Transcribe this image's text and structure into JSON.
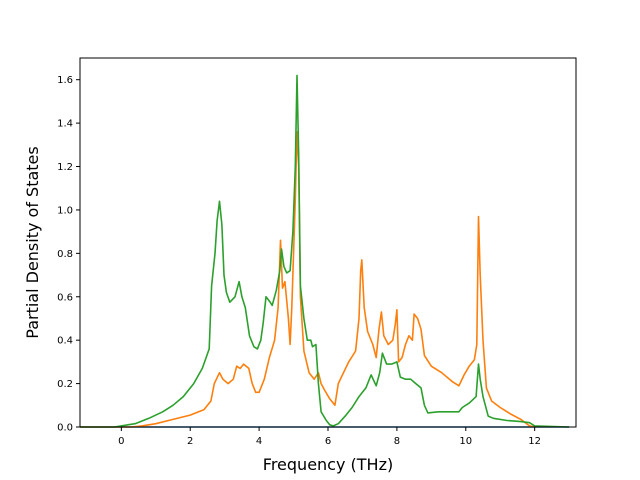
{
  "chart_data": {
    "type": "line",
    "title": "",
    "xlabel": "Frequency (THz)",
    "ylabel": "Partial Density of States",
    "xlim": [
      -1.2,
      13.2
    ],
    "ylim": [
      0,
      1.7
    ],
    "xticks": [
      0,
      2,
      4,
      6,
      8,
      10,
      12
    ],
    "yticks": [
      0.0,
      0.2,
      0.4,
      0.6,
      0.8,
      1.0,
      1.2,
      1.4,
      1.6
    ],
    "xtick_labels": [
      "0",
      "2",
      "4",
      "6",
      "8",
      "10",
      "12"
    ],
    "ytick_labels": [
      "0.0",
      "0.2",
      "0.4",
      "0.6",
      "0.8",
      "1.0",
      "1.2",
      "1.4",
      "1.6"
    ],
    "grid": false,
    "legend": "none",
    "series": [
      {
        "color": "#1f77b4",
        "points": [
          [
            -1.2,
            0
          ],
          [
            13,
            0
          ]
        ]
      },
      {
        "color": "#ff7f0e",
        "points": [
          [
            -1.2,
            0
          ],
          [
            0.3,
            0
          ],
          [
            0.6,
            0.005
          ],
          [
            1.0,
            0.015
          ],
          [
            1.5,
            0.035
          ],
          [
            2.0,
            0.055
          ],
          [
            2.4,
            0.08
          ],
          [
            2.6,
            0.12
          ],
          [
            2.7,
            0.2
          ],
          [
            2.85,
            0.25
          ],
          [
            2.95,
            0.22
          ],
          [
            3.1,
            0.2
          ],
          [
            3.25,
            0.22
          ],
          [
            3.35,
            0.28
          ],
          [
            3.45,
            0.27
          ],
          [
            3.55,
            0.29
          ],
          [
            3.7,
            0.27
          ],
          [
            3.8,
            0.2
          ],
          [
            3.9,
            0.16
          ],
          [
            4.0,
            0.16
          ],
          [
            4.15,
            0.22
          ],
          [
            4.3,
            0.32
          ],
          [
            4.45,
            0.4
          ],
          [
            4.55,
            0.55
          ],
          [
            4.62,
            0.86
          ],
          [
            4.68,
            0.64
          ],
          [
            4.75,
            0.67
          ],
          [
            4.85,
            0.5
          ],
          [
            4.9,
            0.38
          ],
          [
            4.95,
            0.55
          ],
          [
            5.05,
            1.05
          ],
          [
            5.1,
            1.36
          ],
          [
            5.15,
            1.2
          ],
          [
            5.2,
            0.6
          ],
          [
            5.3,
            0.35
          ],
          [
            5.45,
            0.25
          ],
          [
            5.6,
            0.22
          ],
          [
            5.72,
            0.25
          ],
          [
            5.8,
            0.2
          ],
          [
            5.9,
            0.17
          ],
          [
            6.05,
            0.13
          ],
          [
            6.2,
            0.1
          ],
          [
            6.3,
            0.2
          ],
          [
            6.45,
            0.25
          ],
          [
            6.6,
            0.3
          ],
          [
            6.8,
            0.35
          ],
          [
            6.9,
            0.5
          ],
          [
            6.95,
            0.72
          ],
          [
            6.98,
            0.77
          ],
          [
            7.05,
            0.55
          ],
          [
            7.15,
            0.44
          ],
          [
            7.3,
            0.38
          ],
          [
            7.4,
            0.32
          ],
          [
            7.48,
            0.45
          ],
          [
            7.55,
            0.53
          ],
          [
            7.62,
            0.42
          ],
          [
            7.75,
            0.38
          ],
          [
            7.88,
            0.4
          ],
          [
            7.95,
            0.47
          ],
          [
            8.0,
            0.54
          ],
          [
            8.05,
            0.3
          ],
          [
            8.15,
            0.32
          ],
          [
            8.25,
            0.38
          ],
          [
            8.35,
            0.42
          ],
          [
            8.45,
            0.4
          ],
          [
            8.5,
            0.52
          ],
          [
            8.6,
            0.5
          ],
          [
            8.7,
            0.45
          ],
          [
            8.8,
            0.33
          ],
          [
            9.0,
            0.28
          ],
          [
            9.3,
            0.25
          ],
          [
            9.6,
            0.21
          ],
          [
            9.8,
            0.19
          ],
          [
            9.95,
            0.24
          ],
          [
            10.1,
            0.28
          ],
          [
            10.25,
            0.31
          ],
          [
            10.32,
            0.38
          ],
          [
            10.37,
            0.97
          ],
          [
            10.42,
            0.7
          ],
          [
            10.5,
            0.4
          ],
          [
            10.6,
            0.18
          ],
          [
            10.75,
            0.12
          ],
          [
            11.0,
            0.09
          ],
          [
            11.3,
            0.06
          ],
          [
            11.6,
            0.035
          ],
          [
            11.85,
            0.005
          ],
          [
            12.0,
            0
          ]
        ]
      },
      {
        "color": "#2ca02c",
        "points": [
          [
            -1.2,
            0
          ],
          [
            -0.2,
            0
          ],
          [
            0.0,
            0.005
          ],
          [
            0.4,
            0.015
          ],
          [
            0.8,
            0.04
          ],
          [
            1.2,
            0.07
          ],
          [
            1.5,
            0.1
          ],
          [
            1.8,
            0.14
          ],
          [
            2.1,
            0.2
          ],
          [
            2.35,
            0.27
          ],
          [
            2.55,
            0.36
          ],
          [
            2.62,
            0.65
          ],
          [
            2.72,
            0.8
          ],
          [
            2.78,
            0.95
          ],
          [
            2.85,
            1.04
          ],
          [
            2.92,
            0.93
          ],
          [
            2.98,
            0.7
          ],
          [
            3.05,
            0.62
          ],
          [
            3.15,
            0.575
          ],
          [
            3.3,
            0.6
          ],
          [
            3.42,
            0.67
          ],
          [
            3.5,
            0.6
          ],
          [
            3.6,
            0.55
          ],
          [
            3.72,
            0.42
          ],
          [
            3.85,
            0.37
          ],
          [
            3.95,
            0.36
          ],
          [
            4.05,
            0.4
          ],
          [
            4.12,
            0.48
          ],
          [
            4.2,
            0.6
          ],
          [
            4.3,
            0.58
          ],
          [
            4.38,
            0.56
          ],
          [
            4.5,
            0.63
          ],
          [
            4.6,
            0.72
          ],
          [
            4.65,
            0.82
          ],
          [
            4.72,
            0.74
          ],
          [
            4.8,
            0.71
          ],
          [
            4.9,
            0.72
          ],
          [
            4.98,
            0.9
          ],
          [
            5.05,
            1.2
          ],
          [
            5.1,
            1.62
          ],
          [
            5.15,
            1.25
          ],
          [
            5.2,
            0.65
          ],
          [
            5.3,
            0.5
          ],
          [
            5.4,
            0.4
          ],
          [
            5.5,
            0.4
          ],
          [
            5.55,
            0.37
          ],
          [
            5.65,
            0.38
          ],
          [
            5.72,
            0.2
          ],
          [
            5.8,
            0.07
          ],
          [
            5.95,
            0.03
          ],
          [
            6.05,
            0.01
          ],
          [
            6.15,
            0.005
          ],
          [
            6.3,
            0.015
          ],
          [
            6.5,
            0.05
          ],
          [
            6.7,
            0.09
          ],
          [
            6.9,
            0.14
          ],
          [
            7.1,
            0.18
          ],
          [
            7.25,
            0.24
          ],
          [
            7.4,
            0.19
          ],
          [
            7.5,
            0.25
          ],
          [
            7.58,
            0.34
          ],
          [
            7.7,
            0.29
          ],
          [
            7.85,
            0.29
          ],
          [
            8.0,
            0.3
          ],
          [
            8.1,
            0.23
          ],
          [
            8.25,
            0.22
          ],
          [
            8.4,
            0.22
          ],
          [
            8.55,
            0.2
          ],
          [
            8.7,
            0.18
          ],
          [
            8.8,
            0.1
          ],
          [
            8.9,
            0.065
          ],
          [
            9.2,
            0.07
          ],
          [
            9.6,
            0.07
          ],
          [
            9.8,
            0.07
          ],
          [
            9.9,
            0.09
          ],
          [
            10.1,
            0.11
          ],
          [
            10.3,
            0.14
          ],
          [
            10.37,
            0.29
          ],
          [
            10.42,
            0.22
          ],
          [
            10.5,
            0.14
          ],
          [
            10.65,
            0.05
          ],
          [
            10.8,
            0.04
          ],
          [
            11.2,
            0.03
          ],
          [
            11.6,
            0.025
          ],
          [
            11.85,
            0.02
          ],
          [
            12.0,
            0.005
          ],
          [
            13.0,
            0
          ]
        ]
      }
    ]
  }
}
